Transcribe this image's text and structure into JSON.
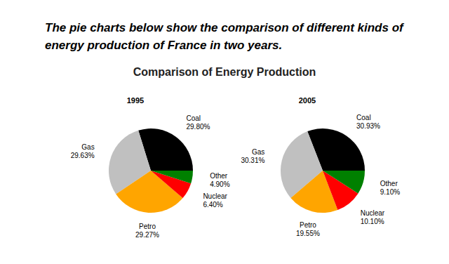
{
  "heading": "The pie charts below show the comparison of different kinds of energy production of France in two years.",
  "title": "Comparison of Energy Production",
  "chart_data": [
    {
      "type": "pie",
      "title": "1995",
      "categories": [
        "Coal",
        "Gas",
        "Petro",
        "Nuclear",
        "Other"
      ],
      "values": [
        29.8,
        29.63,
        29.27,
        6.4,
        4.9
      ],
      "value_labels": [
        "29.80%",
        "29.63%",
        "29.27%",
        "6.40%",
        "4.90%"
      ],
      "colors": [
        "#000000",
        "#c0c0c0",
        "#ffa500",
        "#ff0000",
        "#008000"
      ],
      "data_labels": true
    },
    {
      "type": "pie",
      "title": "2005",
      "categories": [
        "Coal",
        "Gas",
        "Petro",
        "Nuclear",
        "Other"
      ],
      "values": [
        30.93,
        30.31,
        19.55,
        10.1,
        9.1
      ],
      "value_labels": [
        "30.93%",
        "30.31%",
        "19.55%",
        "10.10%",
        "9.10%"
      ],
      "colors": [
        "#000000",
        "#c0c0c0",
        "#ffa500",
        "#ff0000",
        "#008000"
      ],
      "data_labels": true
    }
  ]
}
